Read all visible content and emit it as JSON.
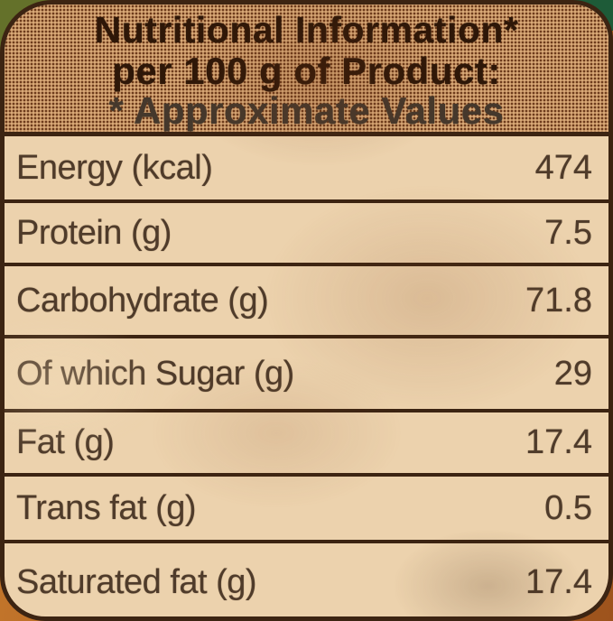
{
  "label": {
    "header": {
      "line1": "Nutritional Information*",
      "line2": "per 100 g of Product:",
      "line3": "* Approximate Values"
    },
    "rows": [
      {
        "name": "Energy (kcal)",
        "value": "474"
      },
      {
        "name": "Protein (g)",
        "value": "7.5"
      },
      {
        "name": "Carbohydrate (g)",
        "value": "71.8"
      },
      {
        "name": "Of which Sugar (g)",
        "value": "29"
      },
      {
        "name": "Fat (g)",
        "value": "17.4"
      },
      {
        "name": "Trans fat (g)",
        "value": "0.5"
      },
      {
        "name": "Saturated fat (g)",
        "value": "17.4"
      }
    ]
  },
  "colors": {
    "outer-a": "#c97c31",
    "outer-b": "#9d531d",
    "corner-olive": "#64712a",
    "corner-teal": "#8ab7a2",
    "corner-green": "#1e5b38",
    "label-bg": "#ecd2ad",
    "header-bg": "#d9a977",
    "dot": "#8a5a38",
    "line": "#3c2412",
    "text-header": "#2e1708",
    "text-header3": "#45382c",
    "text-rows": "#4f3b2a"
  }
}
